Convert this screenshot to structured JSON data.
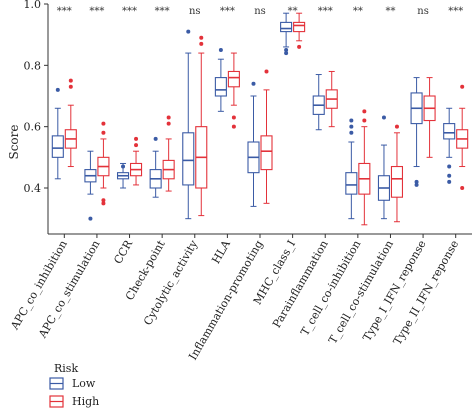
{
  "chart_data": {
    "type": "boxplot",
    "ylabel": "Score",
    "ylim": [
      0.25,
      1.0
    ],
    "yticks": [
      "0.4",
      "0.6",
      "0.8",
      "1.0"
    ],
    "ytick_values": [
      0.4,
      0.6,
      0.8,
      1.0
    ],
    "grid": false,
    "legend_title": "Risk",
    "legend_placement": "bottom-left",
    "categories": [
      "APC_co_inhibition",
      "APC_co_stimulation",
      "CCR",
      "Check-point",
      "Cytolytic_activity",
      "HLA",
      "Inflammation-promoting",
      "MHC_class_I",
      "Parainflammation",
      "T_cell_co-inhibition",
      "T_cell_co-stimulation",
      "Type_I_IFN_reponse",
      "Type_II_IFN_reponse"
    ],
    "significance": [
      "***",
      "***",
      "***",
      "***",
      "ns",
      "***",
      "ns",
      "**",
      "***",
      "**",
      "**",
      "ns",
      "***"
    ],
    "series": [
      {
        "name": "Low",
        "color": "#3b5ba5",
        "boxes": [
          {
            "min": 0.43,
            "q1": 0.5,
            "median": 0.53,
            "q3": 0.57,
            "max": 0.66,
            "outliers": [
              0.72
            ]
          },
          {
            "min": 0.38,
            "q1": 0.42,
            "median": 0.44,
            "q3": 0.46,
            "max": 0.52,
            "outliers": [
              0.3
            ]
          },
          {
            "min": 0.4,
            "q1": 0.43,
            "median": 0.44,
            "q3": 0.45,
            "max": 0.48,
            "outliers": [
              0.47
            ]
          },
          {
            "min": 0.37,
            "q1": 0.4,
            "median": 0.43,
            "q3": 0.46,
            "max": 0.52,
            "outliers": [
              0.56
            ]
          },
          {
            "min": 0.3,
            "q1": 0.41,
            "median": 0.49,
            "q3": 0.58,
            "max": 0.84,
            "outliers": [
              0.91
            ]
          },
          {
            "min": 0.65,
            "q1": 0.7,
            "median": 0.72,
            "q3": 0.76,
            "max": 0.82,
            "outliers": [
              0.85
            ]
          },
          {
            "min": 0.34,
            "q1": 0.45,
            "median": 0.5,
            "q3": 0.55,
            "max": 0.7,
            "outliers": [
              0.74
            ]
          },
          {
            "min": 0.86,
            "q1": 0.91,
            "median": 0.92,
            "q3": 0.94,
            "max": 0.97,
            "outliers": [
              0.84,
              0.85
            ]
          },
          {
            "min": 0.59,
            "q1": 0.64,
            "median": 0.67,
            "q3": 0.7,
            "max": 0.77,
            "outliers": []
          },
          {
            "min": 0.3,
            "q1": 0.38,
            "median": 0.41,
            "q3": 0.45,
            "max": 0.55,
            "outliers": [
              0.58,
              0.6,
              0.62
            ]
          },
          {
            "min": 0.3,
            "q1": 0.36,
            "median": 0.4,
            "q3": 0.44,
            "max": 0.54,
            "outliers": [
              0.63
            ]
          },
          {
            "min": 0.47,
            "q1": 0.61,
            "median": 0.66,
            "q3": 0.71,
            "max": 0.76,
            "outliers": [
              0.41,
              0.42
            ]
          },
          {
            "min": 0.5,
            "q1": 0.56,
            "median": 0.58,
            "q3": 0.61,
            "max": 0.66,
            "outliers": [
              0.47,
              0.44,
              0.42
            ]
          }
        ]
      },
      {
        "name": "High",
        "color": "#e3323a",
        "boxes": [
          {
            "min": 0.47,
            "q1": 0.53,
            "median": 0.56,
            "q3": 0.59,
            "max": 0.67,
            "outliers": [
              0.73,
              0.75
            ]
          },
          {
            "min": 0.4,
            "q1": 0.44,
            "median": 0.47,
            "q3": 0.5,
            "max": 0.56,
            "outliers": [
              0.58,
              0.61,
              0.36,
              0.35
            ]
          },
          {
            "min": 0.41,
            "q1": 0.44,
            "median": 0.46,
            "q3": 0.48,
            "max": 0.52,
            "outliers": [
              0.54,
              0.56
            ]
          },
          {
            "min": 0.39,
            "q1": 0.43,
            "median": 0.46,
            "q3": 0.49,
            "max": 0.56,
            "outliers": [
              0.61,
              0.63
            ]
          },
          {
            "min": 0.31,
            "q1": 0.4,
            "median": 0.5,
            "q3": 0.6,
            "max": 0.84,
            "outliers": [
              0.87,
              0.89
            ]
          },
          {
            "min": 0.67,
            "q1": 0.73,
            "median": 0.76,
            "q3": 0.78,
            "max": 0.84,
            "outliers": [
              0.63,
              0.6
            ]
          },
          {
            "min": 0.35,
            "q1": 0.46,
            "median": 0.52,
            "q3": 0.57,
            "max": 0.72,
            "outliers": [
              0.78
            ]
          },
          {
            "min": 0.88,
            "q1": 0.91,
            "median": 0.93,
            "q3": 0.94,
            "max": 0.97,
            "outliers": [
              0.86
            ]
          },
          {
            "min": 0.6,
            "q1": 0.66,
            "median": 0.69,
            "q3": 0.72,
            "max": 0.78,
            "outliers": []
          },
          {
            "min": 0.28,
            "q1": 0.38,
            "median": 0.43,
            "q3": 0.48,
            "max": 0.6,
            "outliers": [
              0.62,
              0.65
            ]
          },
          {
            "min": 0.29,
            "q1": 0.37,
            "median": 0.43,
            "q3": 0.47,
            "max": 0.58,
            "outliers": [
              0.6
            ]
          },
          {
            "min": 0.5,
            "q1": 0.62,
            "median": 0.66,
            "q3": 0.7,
            "max": 0.76,
            "outliers": []
          },
          {
            "min": 0.47,
            "q1": 0.53,
            "median": 0.56,
            "q3": 0.59,
            "max": 0.66,
            "outliers": [
              0.73,
              0.4
            ]
          }
        ]
      }
    ]
  }
}
